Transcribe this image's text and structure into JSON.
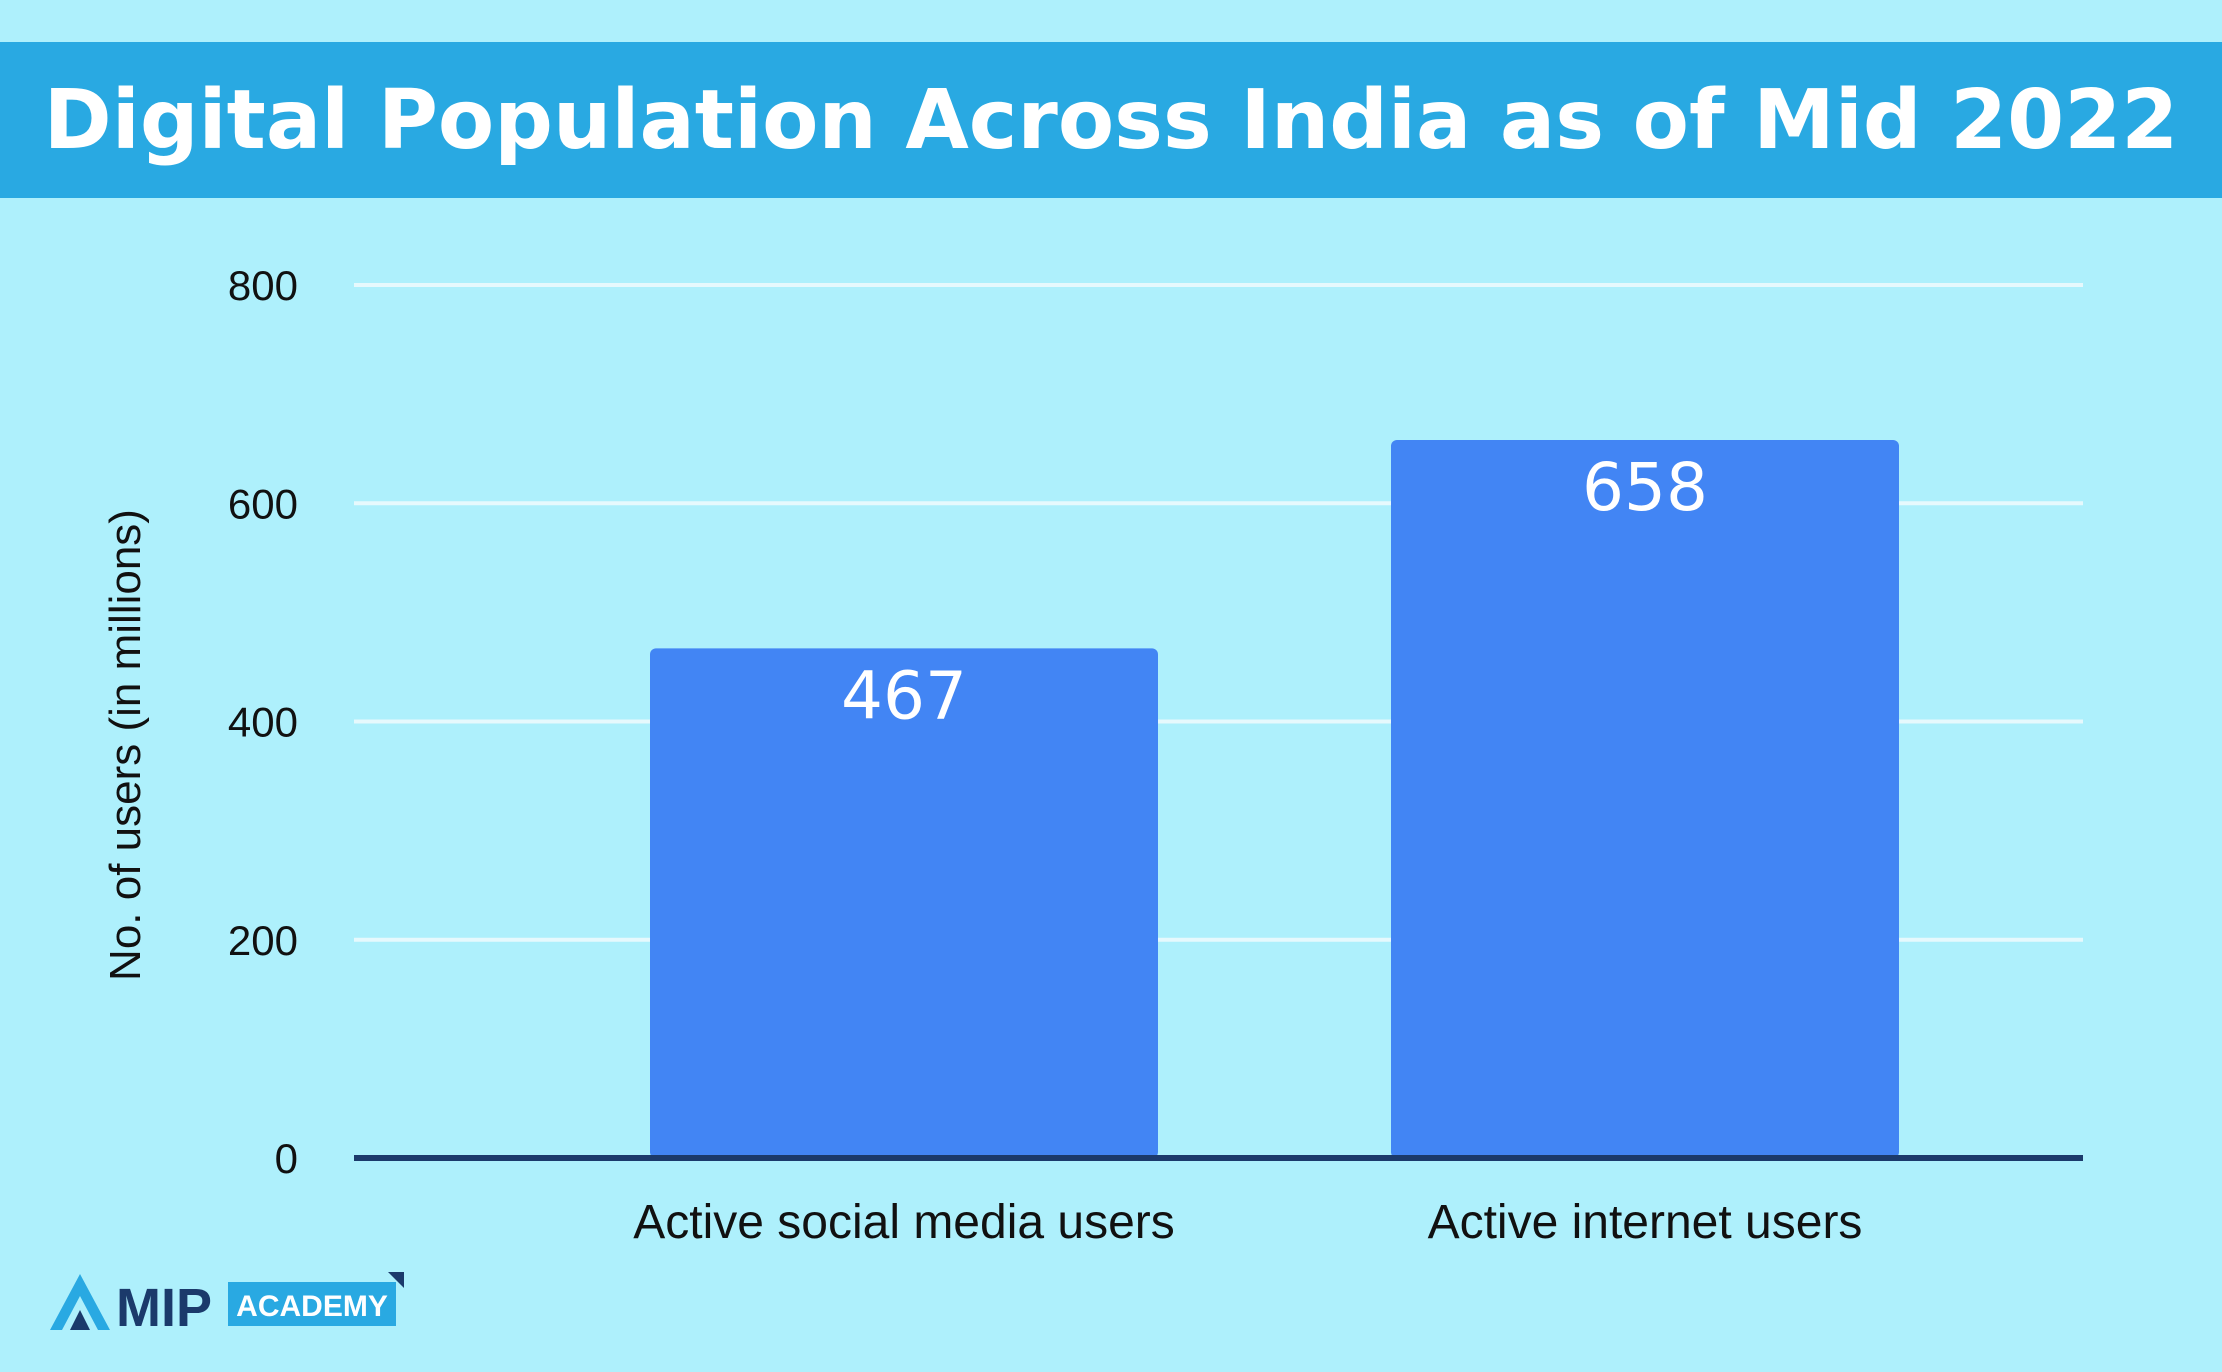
{
  "title": "Digital Population Across India as of Mid 2022",
  "colors": {
    "background": "#aef0fc",
    "title_bar": "#29a9e2",
    "bar": "#4285f4",
    "baseline": "#1b3a6b",
    "gridline": "#e6f9fd"
  },
  "chart_data": {
    "type": "bar",
    "categories": [
      "Active social media users",
      "Active internet users"
    ],
    "values": [
      467,
      658
    ],
    "data_labels": [
      "467",
      "658"
    ],
    "xlabel": "",
    "ylabel": "No. of users (in millions)",
    "ylim": [
      0,
      800
    ],
    "yticks": [
      0,
      200,
      400,
      600,
      800
    ],
    "ytick_labels": [
      "0",
      "200",
      "400",
      "600",
      "800"
    ],
    "grid": true
  },
  "logo": {
    "icon": "mip-logo-icon",
    "word": "MIP",
    "badge": "ACADEMY"
  }
}
